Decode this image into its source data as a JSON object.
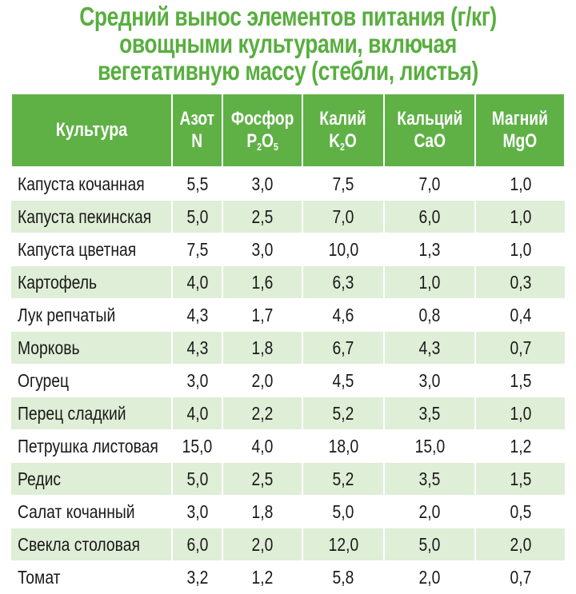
{
  "title": {
    "line1": "Средний вынос элементов питания (г/кг)",
    "line2": "овощными культурами, включая",
    "line3": "вегетативную массу (стебли, листья)"
  },
  "columns": [
    {
      "name": "Культура"
    },
    {
      "name": "Азот",
      "symbol": "N"
    },
    {
      "name": "Фосфор",
      "symbol_main": "P",
      "sub1": "2",
      "symbol_mid": "O",
      "sub2": "5"
    },
    {
      "name": "Калий",
      "symbol_main": "K",
      "sub1": "2",
      "symbol_mid": "O"
    },
    {
      "name": "Кальций",
      "symbol": "CaO"
    },
    {
      "name": "Магний",
      "symbol": "MgO"
    }
  ],
  "rows": [
    [
      "Капуста кочанная",
      "5,5",
      "3,0",
      "7,5",
      "7,0",
      "1,0"
    ],
    [
      "Капуста пекинская",
      "5,0",
      "2,5",
      "7,0",
      "6,0",
      "1,0"
    ],
    [
      "Капуста цветная",
      "7,5",
      "3,0",
      "10,0",
      "1,3",
      "1,0"
    ],
    [
      "Картофель",
      "4,0",
      "1,6",
      "6,3",
      "1,0",
      "0,3"
    ],
    [
      "Лук репчатый",
      "4,3",
      "1,7",
      "4,6",
      "0,8",
      "0,4"
    ],
    [
      "Морковь",
      "4,3",
      "1,8",
      "6,7",
      "4,3",
      "0,7"
    ],
    [
      "Огурец",
      "3,0",
      "2,0",
      "4,5",
      "3,0",
      "1,5"
    ],
    [
      "Перец сладкий",
      "4,0",
      "2,2",
      "5,2",
      "3,5",
      "1,0"
    ],
    [
      "Петрушка листовая",
      "15,0",
      "4,0",
      "18,0",
      "15,0",
      "1,2"
    ],
    [
      "Редис",
      "5,0",
      "2,5",
      "5,2",
      "3,5",
      "1,5"
    ],
    [
      "Салат кочанный",
      "3,0",
      "1,8",
      "5,0",
      "2,0",
      "0,5"
    ],
    [
      "Свекла столовая",
      "6,0",
      "2,0",
      "12,0",
      "5,0",
      "2,0"
    ],
    [
      "Томат",
      "3,2",
      "1,2",
      "5,8",
      "2,0",
      "0,7"
    ]
  ],
  "colors": {
    "title": "#58ae3f",
    "header_bg": "#5fb146",
    "row_alt": "#dfeed6"
  }
}
